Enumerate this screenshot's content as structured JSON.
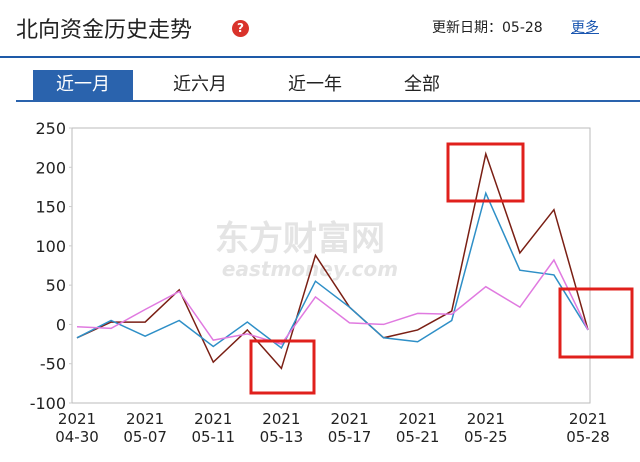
{
  "header": {
    "title": "北向资金历史走势",
    "update": "更新日期：05-28",
    "more": "更多"
  },
  "tabs": [
    "近一月",
    "近六月",
    "近一年",
    "全部"
  ],
  "chart_data": {
    "type": "line",
    "watermark": [
      "东方财富网",
      "eastmoney.com"
    ],
    "categories": [
      [
        "2021",
        "04-30"
      ],
      null,
      [
        "2021",
        "05-07"
      ],
      null,
      [
        "2021",
        "05-11"
      ],
      null,
      [
        "2021",
        "05-13"
      ],
      null,
      [
        "2021",
        "05-17"
      ],
      null,
      [
        "2021",
        "05-21"
      ],
      null,
      [
        "2021",
        "05-25"
      ],
      null,
      null,
      [
        "2021",
        "05-28"
      ]
    ],
    "series": [
      {
        "color": "#7a1f14",
        "values": [
          -17,
          3,
          3,
          44,
          -48,
          -7,
          -56,
          88,
          22,
          -17,
          -7,
          17,
          217,
          91,
          146,
          -7
        ]
      },
      {
        "color": "#2e8fc7",
        "values": [
          -17,
          5,
          -15,
          5,
          -28,
          3,
          -30,
          55,
          22,
          -17,
          -22,
          5,
          167,
          69,
          63,
          -7
        ]
      },
      {
        "color": "#e07ae0",
        "values": [
          -3,
          -5,
          19,
          42,
          -20,
          -12,
          -25,
          35,
          2,
          0,
          14,
          13,
          48,
          22,
          82,
          -7
        ]
      }
    ],
    "ylim": [
      -100,
      250
    ],
    "yticks": [
      -100,
      -50,
      0,
      50,
      100,
      150,
      200,
      250
    ],
    "grid": false
  }
}
